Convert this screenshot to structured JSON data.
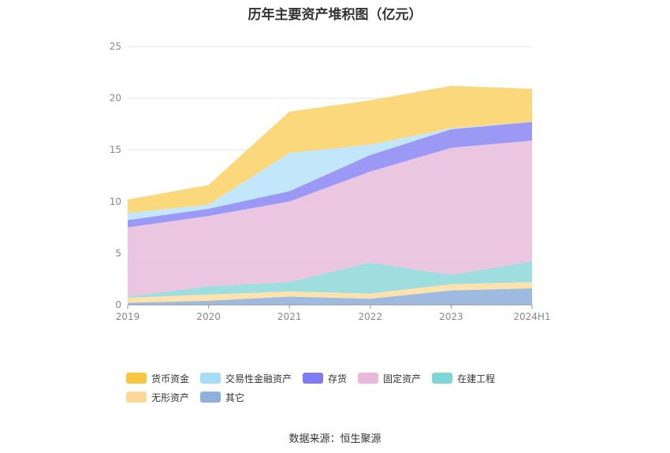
{
  "chart_data": {
    "type": "area",
    "title": "历年主要资产堆积图（亿元）",
    "categories": [
      "2019",
      "2020",
      "2021",
      "2022",
      "2023",
      "2024H1"
    ],
    "ylim": [
      0,
      25
    ],
    "yticks": [
      0,
      5,
      10,
      15,
      20,
      25
    ],
    "stacked": true,
    "grid": true,
    "legend_position": "bottom",
    "series": [
      {
        "name": "其它",
        "color": "#8eaedb",
        "values": [
          0.2,
          0.4,
          0.8,
          0.6,
          1.4,
          1.6
        ]
      },
      {
        "name": "无形资产",
        "color": "#fddd9f",
        "values": [
          0.5,
          0.6,
          0.5,
          0.5,
          0.6,
          0.6
        ]
      },
      {
        "name": "在建工程",
        "color": "#8dd8d8",
        "values": [
          0.1,
          0.8,
          0.9,
          3.0,
          0.9,
          2.0
        ]
      },
      {
        "name": "固定资产",
        "color": "#e8bcdc",
        "values": [
          6.7,
          6.8,
          7.8,
          8.8,
          12.3,
          11.7
        ]
      },
      {
        "name": "存货",
        "color": "#8a86f5",
        "values": [
          0.7,
          0.7,
          1.0,
          1.6,
          1.8,
          1.8
        ]
      },
      {
        "name": "交易性金融资产",
        "color": "#b7e3fa",
        "values": [
          0.7,
          0.4,
          3.7,
          1.0,
          0.1,
          0.0
        ]
      },
      {
        "name": "货币资金",
        "color": "#fcd166",
        "values": [
          1.3,
          1.9,
          4.0,
          4.3,
          4.1,
          3.2
        ]
      }
    ],
    "legend_order": [
      "货币资金",
      "交易性金融资产",
      "存货",
      "固定资产",
      "在建工程",
      "无形资产",
      "其它"
    ]
  },
  "legend_colors": {
    "货币资金": "#fbc63f",
    "交易性金融资产": "#a6dcf8",
    "存货": "#7f7bf3",
    "固定资产": "#e9b8da",
    "在建工程": "#7fd6d6",
    "无形资产": "#fdd896",
    "其它": "#8fb0db"
  },
  "source": "数据来源：恒生聚源"
}
